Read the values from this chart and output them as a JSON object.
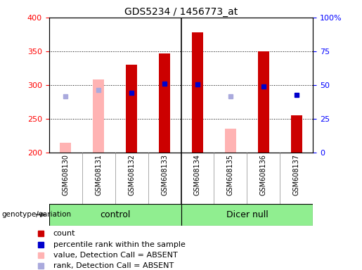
{
  "title": "GDS5234 / 1456773_at",
  "samples": [
    "GSM608130",
    "GSM608131",
    "GSM608132",
    "GSM608133",
    "GSM608134",
    "GSM608135",
    "GSM608136",
    "GSM608137"
  ],
  "absent_detection": [
    true,
    true,
    false,
    false,
    false,
    true,
    false,
    false
  ],
  "count_values": [
    215,
    308,
    330,
    347,
    378,
    235,
    350,
    255
  ],
  "rank_values": [
    41.5,
    46.5,
    44.5,
    51.0,
    50.5,
    41.5,
    49.0,
    42.5
  ],
  "base": 200,
  "ylim_left": [
    200,
    400
  ],
  "ylim_right": [
    0,
    100
  ],
  "yticks_left": [
    200,
    250,
    300,
    350,
    400
  ],
  "yticks_right": [
    0,
    25,
    50,
    75,
    100
  ],
  "yticklabels_right": [
    "0",
    "25",
    "50",
    "75",
    "100%"
  ],
  "red_bar_color": "#cc0000",
  "pink_bar_color": "#ffb3b3",
  "blue_sq_color": "#0000cc",
  "light_blue_sq_color": "#aaaadd",
  "group_color": "#90ee90",
  "legend_labels": [
    "count",
    "percentile rank within the sample",
    "value, Detection Call = ABSENT",
    "rank, Detection Call = ABSENT"
  ],
  "legend_colors": [
    "#cc0000",
    "#0000cc",
    "#ffb3b3",
    "#aaaadd"
  ],
  "title_fontsize": 10,
  "tick_fontsize": 8,
  "sample_fontsize": 7,
  "legend_fontsize": 8,
  "bar_width": 0.35,
  "sq_size": 5
}
